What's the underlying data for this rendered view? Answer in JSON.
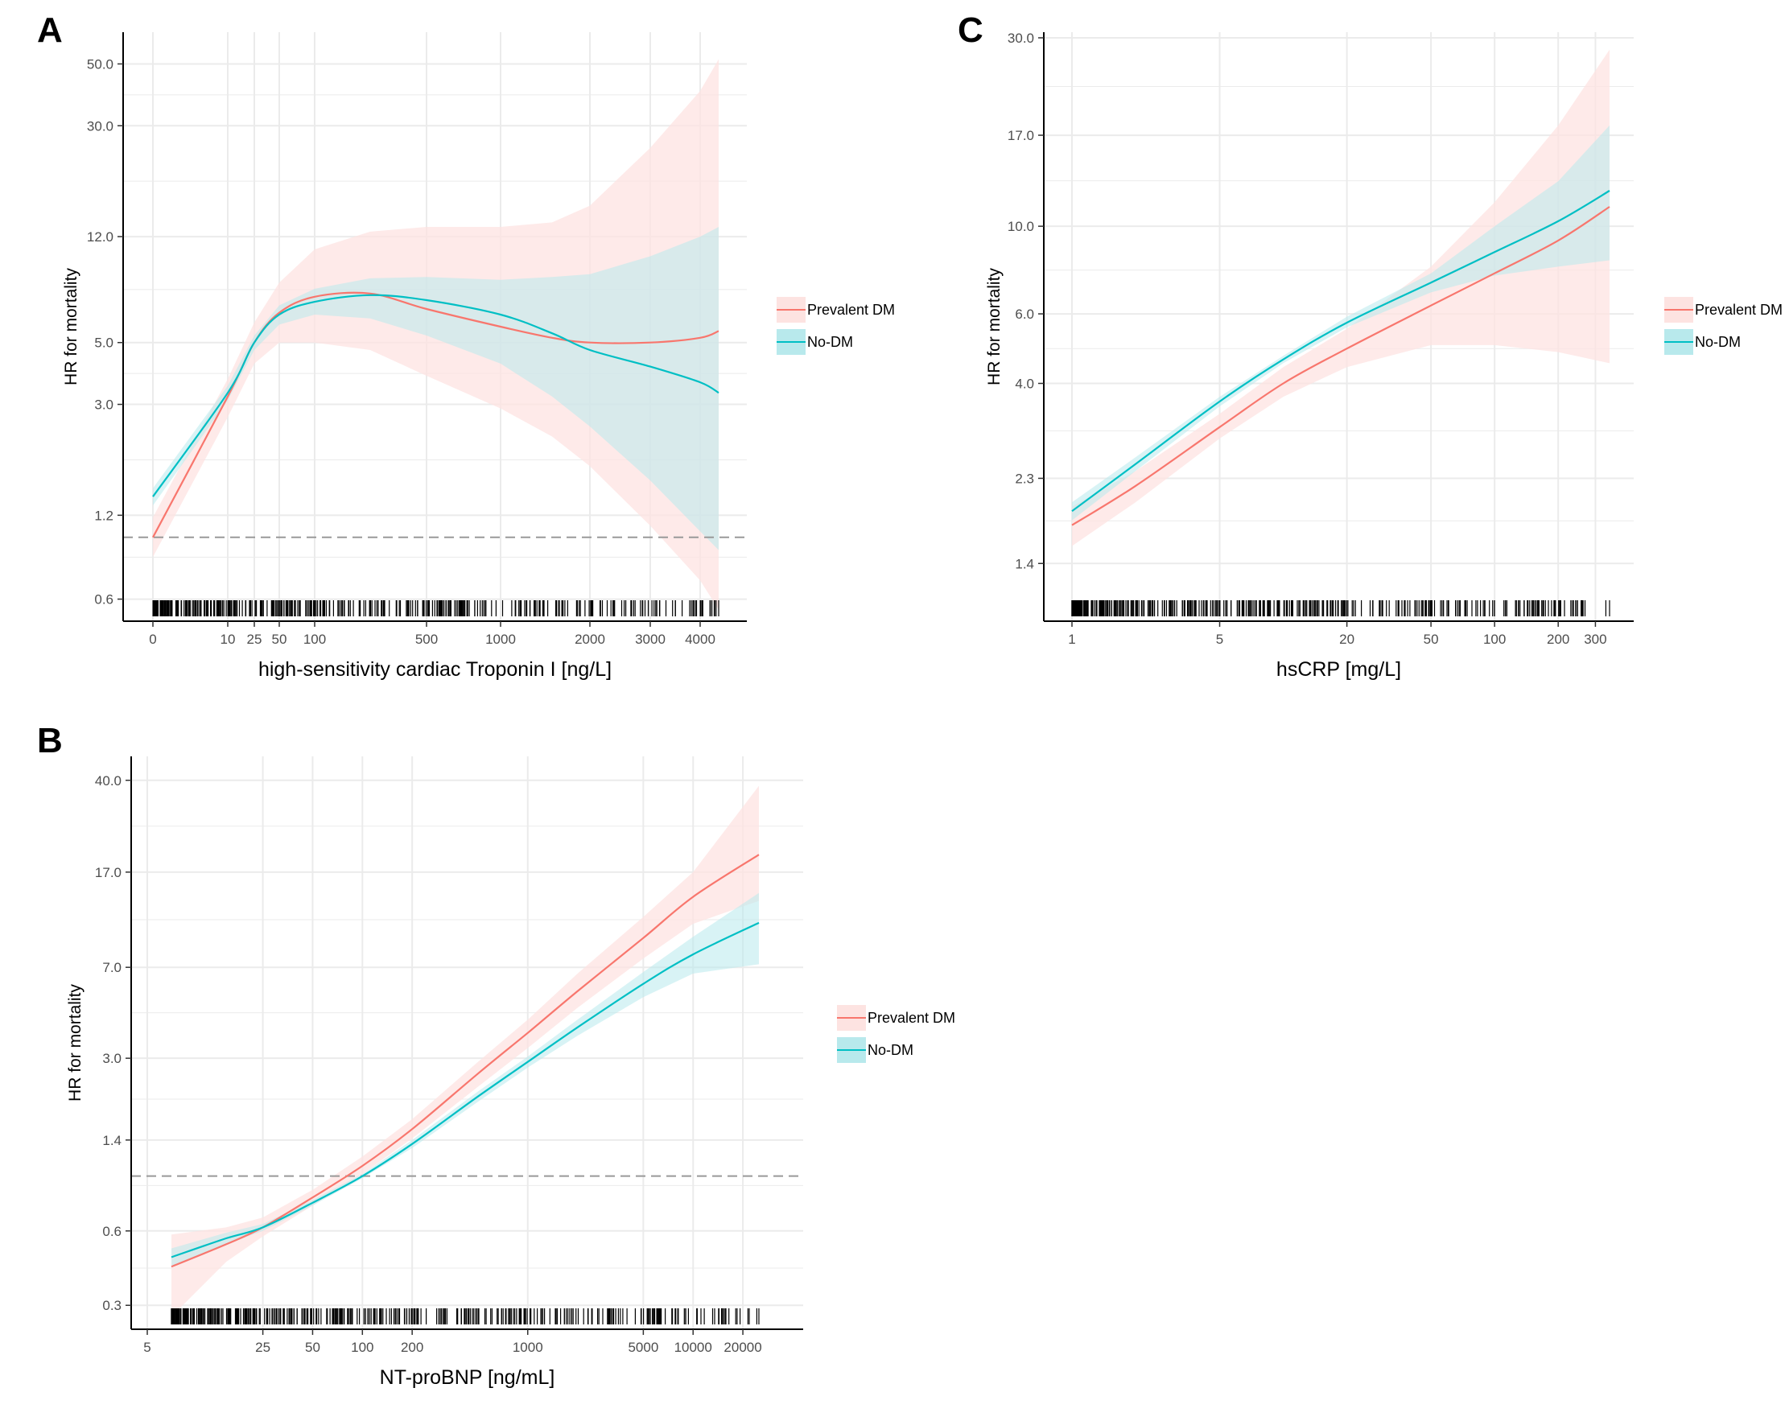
{
  "colors": {
    "prevalent_dm": "#f8766d",
    "no_dm": "#00bfc4",
    "prevalent_dm_band": "#fde3e1",
    "no_dm_band": "#b8e9ec",
    "grid": "#ebebeb",
    "reference_line": "#999999"
  },
  "chart_data": [
    {
      "panel": "A",
      "type": "line",
      "xlabel": "high-sensitivity cardiac Troponin I [ng/L]",
      "ylabel": "HR for mortality",
      "x_ticks": [
        "0",
        "10",
        "25",
        "50",
        "100",
        "500",
        "1000",
        "2000",
        "3000",
        "4000"
      ],
      "y_ticks": [
        "0.6",
        "1.2",
        "3.0",
        "5.0",
        "12.0",
        "30.0",
        "50.0"
      ],
      "y_scale": "log",
      "ylim": [
        0.5,
        65
      ],
      "reference_line_y": 1.0,
      "legend": [
        "Prevalent DM",
        "No-DM"
      ],
      "legend_position": "right",
      "grid": true,
      "rug": true,
      "series": [
        {
          "name": "Prevalent DM",
          "x": [
            "0",
            "10",
            "25",
            "50",
            "100",
            "250",
            "500",
            "1000",
            "1500",
            "2000",
            "3000",
            "4000",
            "4500"
          ],
          "y": [
            1.0,
            3.2,
            5.0,
            6.4,
            7.3,
            7.5,
            6.6,
            5.7,
            5.2,
            5.0,
            5.0,
            5.2,
            5.5
          ],
          "lower": [
            0.85,
            2.7,
            4.2,
            5.0,
            5.0,
            4.7,
            3.8,
            2.9,
            2.3,
            1.8,
            1.1,
            0.7,
            0.55
          ],
          "upper": [
            1.18,
            3.7,
            5.9,
            8.2,
            10.8,
            12.5,
            13.0,
            13.0,
            13.5,
            15.5,
            25.0,
            40.0,
            52.0
          ]
        },
        {
          "name": "No-DM",
          "x": [
            "0",
            "10",
            "25",
            "50",
            "100",
            "250",
            "500",
            "1000",
            "1500",
            "2000",
            "3000",
            "4000",
            "4500"
          ],
          "y": [
            1.4,
            3.3,
            5.0,
            6.3,
            7.0,
            7.4,
            7.1,
            6.3,
            5.4,
            4.7,
            4.1,
            3.6,
            3.3
          ],
          "lower": [
            1.3,
            3.1,
            4.7,
            5.8,
            6.3,
            6.1,
            5.3,
            4.2,
            3.2,
            2.5,
            1.6,
            1.05,
            0.9
          ],
          "upper": [
            1.5,
            3.5,
            5.3,
            6.8,
            7.8,
            8.5,
            8.6,
            8.4,
            8.6,
            8.8,
            10.2,
            12.0,
            13.0
          ]
        }
      ]
    },
    {
      "panel": "B",
      "type": "line",
      "xlabel": "NT-proBNP [ng/mL]",
      "ylabel": "HR for mortality",
      "x_ticks": [
        "5",
        "25",
        "50",
        "100",
        "200",
        "1000",
        "5000",
        "10000",
        "20000"
      ],
      "y_ticks": [
        "0.3",
        "0.6",
        "1.4",
        "3.0",
        "7.0",
        "17.0",
        "40.0"
      ],
      "y_scale": "log",
      "ylim": [
        0.24,
        50
      ],
      "reference_line_y": 1.0,
      "legend": [
        "Prevalent DM",
        "No-DM"
      ],
      "legend_position": "right",
      "grid": true,
      "rug": true,
      "series": [
        {
          "name": "Prevalent DM",
          "x": [
            7,
            15,
            25,
            50,
            100,
            200,
            500,
            1000,
            2000,
            5000,
            10000,
            25000
          ],
          "y": [
            0.43,
            0.53,
            0.62,
            0.82,
            1.1,
            1.55,
            2.6,
            3.8,
            5.6,
            9.2,
            13.5,
            20.0
          ],
          "lower": [
            0.27,
            0.45,
            0.57,
            0.76,
            1.02,
            1.42,
            2.3,
            3.3,
            4.8,
            7.6,
            10.5,
            13.0
          ],
          "upper": [
            0.58,
            0.62,
            0.68,
            0.88,
            1.2,
            1.7,
            2.9,
            4.3,
            6.6,
            11.2,
            17.0,
            38.0
          ]
        },
        {
          "name": "No-DM",
          "x": [
            7,
            15,
            25,
            50,
            100,
            200,
            500,
            1000,
            2000,
            5000,
            10000,
            25000
          ],
          "y": [
            0.47,
            0.56,
            0.62,
            0.78,
            1.0,
            1.35,
            2.1,
            2.9,
            4.0,
            6.0,
            7.9,
            10.6
          ],
          "lower": [
            0.43,
            0.53,
            0.6,
            0.76,
            0.98,
            1.3,
            2.0,
            2.75,
            3.7,
            5.3,
            6.6,
            7.2
          ],
          "upper": [
            0.51,
            0.59,
            0.64,
            0.8,
            1.02,
            1.4,
            2.2,
            3.05,
            4.3,
            6.7,
            9.3,
            14.0
          ]
        }
      ]
    },
    {
      "panel": "C",
      "type": "line",
      "xlabel": "hsCRP [mg/L]",
      "ylabel": "HR for mortality",
      "x_ticks": [
        "1",
        "5",
        "20",
        "50",
        "100",
        "200",
        "300"
      ],
      "y_ticks": [
        "1.4",
        "2.3",
        "4.0",
        "6.0",
        "10.0",
        "17.0",
        "30.0"
      ],
      "y_scale": "log",
      "ylim": [
        1.0,
        31
      ],
      "reference_line_y": 1.0,
      "legend": [
        "Prevalent DM",
        "No-DM"
      ],
      "legend_position": "right",
      "grid": true,
      "rug": true,
      "series": [
        {
          "name": "Prevalent DM",
          "x": [
            1,
            2,
            5,
            10,
            20,
            50,
            100,
            200,
            350
          ],
          "y": [
            1.75,
            2.2,
            3.1,
            4.0,
            4.9,
            6.3,
            7.6,
            9.2,
            11.2
          ],
          "lower": [
            1.55,
            2.0,
            2.9,
            3.7,
            4.4,
            5.0,
            5.0,
            4.8,
            4.5
          ],
          "upper": [
            1.95,
            2.4,
            3.35,
            4.4,
            5.5,
            7.9,
            11.5,
            18.0,
            28.0
          ]
        },
        {
          "name": "No-DM",
          "x": [
            1,
            2,
            5,
            10,
            20,
            50,
            100,
            200,
            350
          ],
          "y": [
            1.9,
            2.5,
            3.6,
            4.6,
            5.7,
            7.2,
            8.6,
            10.3,
            12.3
          ],
          "lower": [
            1.8,
            2.4,
            3.5,
            4.5,
            5.55,
            6.8,
            7.5,
            7.9,
            8.2
          ],
          "upper": [
            2.0,
            2.6,
            3.7,
            4.7,
            5.9,
            7.6,
            10.0,
            13.0,
            18.0
          ]
        }
      ]
    }
  ]
}
